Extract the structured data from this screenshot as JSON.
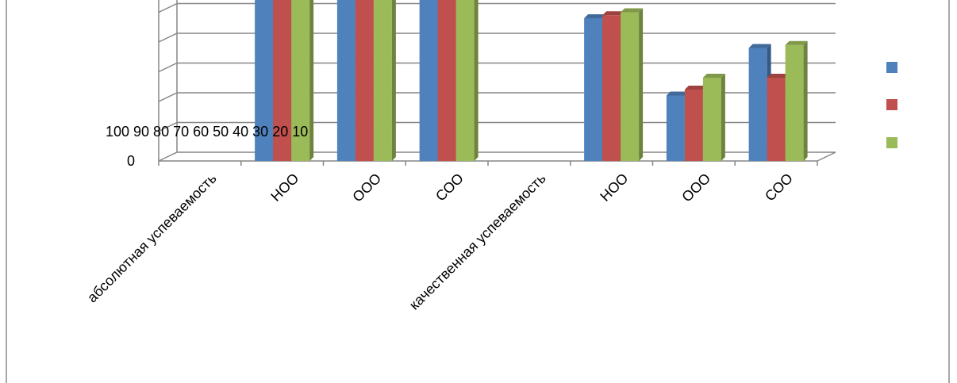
{
  "chart_data": {
    "type": "bar",
    "three_d": true,
    "categories": [
      "абсолютная успеваемость",
      "НОО",
      "ООО",
      "СОО",
      "качественная успеваемость",
      "НОО",
      "ООО",
      "СОО"
    ],
    "series": [
      {
        "values": [
          null,
          100,
          100,
          100,
          null,
          48,
          22,
          38
        ],
        "color": "#4F81BD"
      },
      {
        "values": [
          null,
          100,
          100,
          100,
          null,
          49,
          24,
          28
        ],
        "color": "#C0504D"
      },
      {
        "values": [
          null,
          100,
          100,
          100,
          null,
          50,
          28,
          39
        ],
        "color": "#9BBB59"
      }
    ],
    "y_zero_label": "0",
    "y_tick_labels_run": "100 90 80 70 60 50 40 30 20 10",
    "ylim": [
      0,
      100
    ],
    "grid": true,
    "legend_position": "right"
  }
}
